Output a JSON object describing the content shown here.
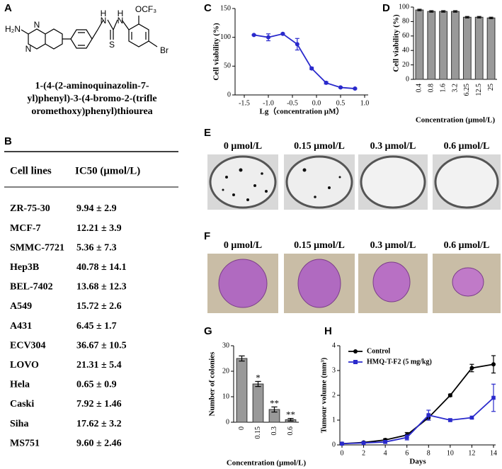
{
  "panels": [
    "A",
    "B",
    "C",
    "D",
    "E",
    "F",
    "G",
    "H"
  ],
  "structure": {
    "atoms": [
      "H₂N",
      "N",
      "N",
      "H",
      "N",
      "S",
      "H",
      "N",
      "OCF₃",
      "Br"
    ],
    "name": [
      "1-(4-(2-aminoquinazolin-7-",
      "yl)phenyl)-3-(4-bromo-2-(trifle",
      "oromethoxy)phenyl)thiourea"
    ]
  },
  "table": {
    "header": [
      "Cell lines",
      "IC50 (μmol/L)"
    ],
    "rows": [
      {
        "cells": [
          "ZR-75-30",
          "9.94 ± 2.9"
        ],
        "color": "#000000"
      },
      {
        "cells": [
          "MCF-7",
          "12.21 ± 3.9"
        ],
        "color": "#000000"
      },
      {
        "cells": [
          "SMMC-7721",
          "5.36 ± 7.3"
        ],
        "color": "#000000"
      },
      {
        "cells": [
          "Hep3B",
          "40.78 ± 14.1"
        ],
        "color": "#000000"
      },
      {
        "cells": [
          "BEL-7402",
          "13.68 ± 12.3"
        ],
        "color": "#000000"
      },
      {
        "cells": [
          "A549",
          "15.72 ± 2.6"
        ],
        "color": "#000000"
      },
      {
        "cells": [
          "A431",
          "6.45 ± 1.7"
        ],
        "color": "#000000"
      },
      {
        "cells": [
          "ECV304",
          "36.67 ± 10.5"
        ],
        "color": "#000000"
      },
      {
        "cells": [
          "LOVO",
          "21.31 ± 5.4"
        ],
        "color": "#000000"
      },
      {
        "cells": [
          "Hela",
          "0.65 ± 0.9"
        ],
        "color": "#4a4ad0"
      },
      {
        "cells": [
          "Caski",
          "7.92 ± 1.46"
        ],
        "color": "#4a4ad0"
      },
      {
        "cells": [
          "Siha",
          "17.62 ± 3.2"
        ],
        "color": "#4a4ad0"
      },
      {
        "cells": [
          "MS751",
          "9.60 ± 2.46"
        ],
        "color": "#4a4ad0"
      }
    ]
  },
  "images_e": [
    "0 μmol/L",
    "0.15 μmol/L",
    "0.3 μmol/L",
    "0.6 μmol/L"
  ],
  "images_f": [
    "0 μmol/L",
    "0.15 μmol/L",
    "0.3 μmol/L",
    "0.6 μmol/L"
  ],
  "chart_data": [
    {
      "type": "line",
      "x_label": "Lg（concentration μM）",
      "y_label": "Cell viability (%)",
      "x": [
        -1.3,
        -1.0,
        -0.7,
        -0.4,
        -0.1,
        0.2,
        0.5,
        0.8
      ],
      "series": [
        {
          "color": "#2a2acc",
          "marker": "circle",
          "values": [
            104,
            100,
            106,
            88,
            46,
            21,
            13,
            11
          ],
          "errors": [
            1,
            6,
            1,
            10,
            2,
            2,
            1,
            1
          ]
        }
      ],
      "xlim": [
        -1.5,
        1.0
      ],
      "xticks": [
        {
          "value": -1.5,
          "label": "-1.5"
        },
        {
          "value": -1.0,
          "label": "-1.0"
        },
        {
          "value": -0.5,
          "label": "-0.5"
        },
        {
          "value": 0,
          "label": "0.0"
        },
        {
          "value": 0.5,
          "label": "0.5"
        },
        {
          "value": 1.0,
          "label": "1.0"
        }
      ],
      "ylim": [
        0,
        150
      ],
      "yticks": [
        0,
        50,
        100,
        150
      ]
    },
    {
      "type": "bar",
      "x_label": "Concentration (μmol/L)",
      "y_label": "Cell viability (%)",
      "categories": [
        "0.4",
        "0.8",
        "1.6",
        "3.2",
        "6.25",
        "12.5",
        "25"
      ],
      "values": [
        96,
        94,
        94,
        94,
        86,
        86,
        85
      ],
      "errors": [
        1,
        1,
        1,
        1,
        1,
        1,
        1
      ],
      "color": "#999999",
      "ylim": [
        0,
        100
      ],
      "yticks": [
        0,
        20,
        40,
        60,
        80,
        100
      ],
      "rotate_labels": true
    },
    {
      "type": "bar",
      "x_label": "Concentration (μmol/L)",
      "y_label": "Number of colonies",
      "categories": [
        "0",
        "0.15",
        "0.3",
        "0.6"
      ],
      "values": [
        25,
        15,
        5,
        1
      ],
      "errors": [
        1,
        1,
        1,
        0.5
      ],
      "annotations": [
        {
          "category": "0.15",
          "text": "*"
        },
        {
          "category": "0.3",
          "text": "**"
        },
        {
          "category": "0.6",
          "text": "**"
        }
      ],
      "color": "#999999",
      "ylim": [
        0,
        30
      ],
      "yticks": [
        0,
        10,
        20,
        30
      ],
      "rotate_labels": true
    },
    {
      "type": "line",
      "x_label": "Days",
      "y_label": "Tumour volume (mm³)",
      "x": [
        0,
        2,
        4,
        6,
        8,
        10,
        12,
        14
      ],
      "series": [
        {
          "name": "Control",
          "color": "#000000",
          "marker": "circle",
          "values": [
            0.05,
            0.1,
            0.2,
            0.4,
            1.1,
            2.0,
            3.1,
            3.25
          ],
          "errors": [
            0.02,
            0.03,
            0.05,
            0.1,
            0.1,
            0.05,
            0.15,
            0.35
          ]
        },
        {
          "name": "HMQ-T-F2 (5 mg/kg)",
          "color": "#2a2acc",
          "marker": "square",
          "values": [
            0.05,
            0.08,
            0.12,
            0.3,
            1.2,
            1.0,
            1.1,
            1.9
          ],
          "errors": [
            0.02,
            0.02,
            0.05,
            0.1,
            0.2,
            0.05,
            0.05,
            0.55
          ]
        }
      ],
      "xlim": [
        0,
        14
      ],
      "xticks": [
        0,
        2,
        4,
        6,
        8,
        10,
        12,
        14
      ],
      "ylim": [
        0,
        4
      ],
      "yticks": [
        0,
        1,
        2,
        3,
        4
      ],
      "legend": "upper left"
    }
  ]
}
